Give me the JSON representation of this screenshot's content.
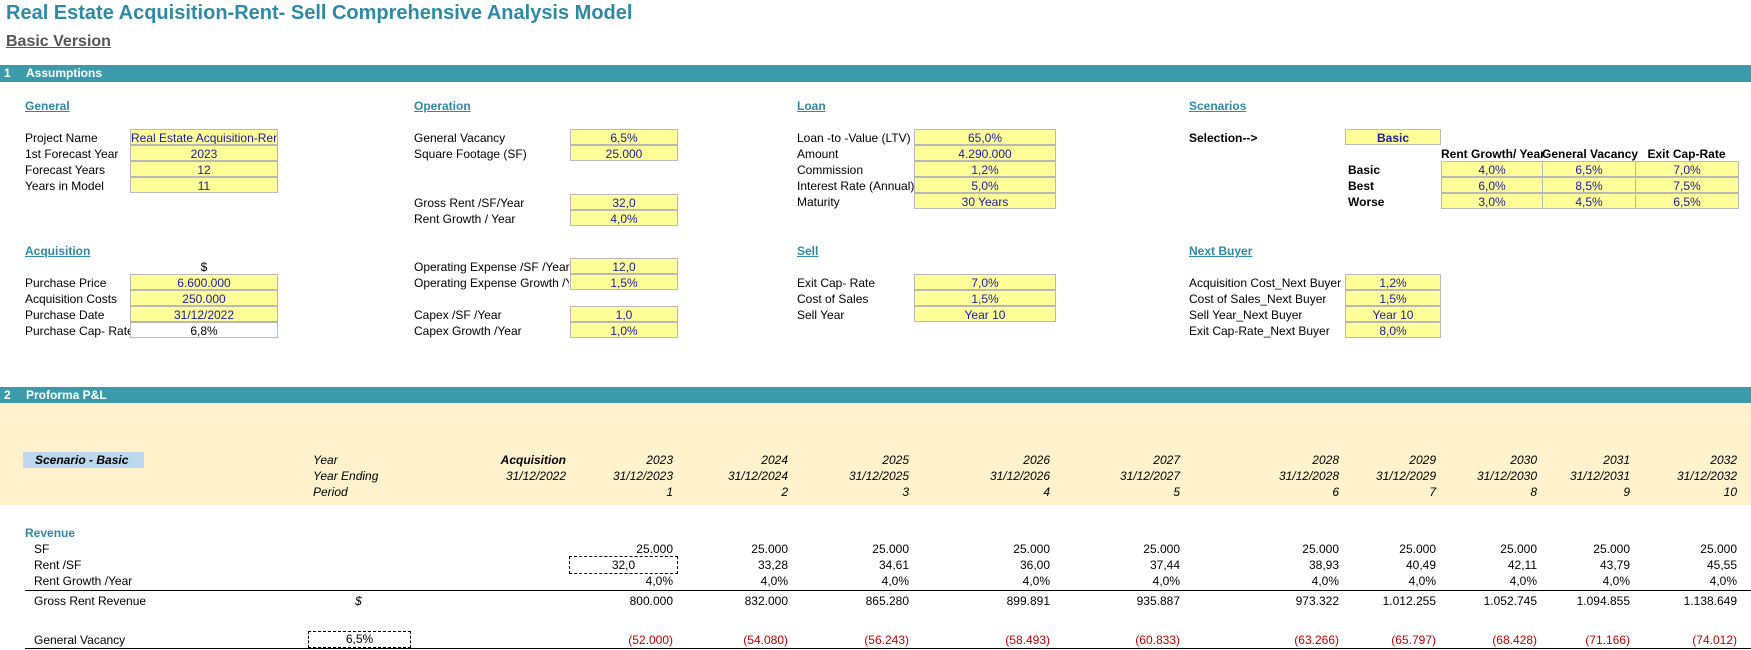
{
  "title": "Real Estate Acquisition-Rent- Sell Comprehensive Analysis Model",
  "subtitle": "Basic Version",
  "colors": {
    "accent": "#3b9bab",
    "input_fill": "#ffff99",
    "header_band": "#fff2cc",
    "negative": "#c00000"
  },
  "section1": {
    "num": "1",
    "label": "Assumptions"
  },
  "general": {
    "heading": "General",
    "project_name_label": "Project Name",
    "project_name": "Real Estate Acquisition-Rent- Sell",
    "first_year_label": "1st Forecast Year",
    "first_year": "2023",
    "forecast_years_label": "Forecast Years",
    "forecast_years": "12",
    "years_model_label": "Years in Model",
    "years_model": "11"
  },
  "operation": {
    "heading": "Operation",
    "vacancy_label": "General Vacancy",
    "vacancy": "6,5%",
    "sf_label": "Square Footage (SF)",
    "sf": "25.000",
    "gross_rent_label": "Gross Rent /SF/Year",
    "gross_rent": "32,0",
    "rent_growth_label": "Rent Growth / Year",
    "rent_growth": "4,0%",
    "opex_label": "Operating Expense /SF /Year",
    "opex": "12,0",
    "opex_growth_label": "Operating Expense Growth  /Ye",
    "opex_growth": "1,5%",
    "capex_label": "Capex /SF /Year",
    "capex": "1,0",
    "capex_growth_label": "Capex Growth  /Year",
    "capex_growth": "1,0%"
  },
  "loan": {
    "heading": "Loan",
    "ltv_label": "Loan -to -Value (LTV)",
    "ltv": "65,0%",
    "amount_label": "Amount",
    "amount": "4.290.000",
    "commission_label": "Commission",
    "commission": "1,2%",
    "interest_label": "Interest Rate (Annual)",
    "interest": "5,0%",
    "maturity_label": "Maturity",
    "maturity": "30 Years"
  },
  "scenarios": {
    "heading": "Scenarios",
    "selection_label": "Selection-->",
    "selection": "Basic",
    "col_headers": [
      "Rent Growth/ Year",
      "General Vacancy",
      "Exit Cap-Rate"
    ],
    "rows": [
      {
        "name": "Basic",
        "values": [
          "4,0%",
          "6,5%",
          "7,0%"
        ]
      },
      {
        "name": "Best",
        "values": [
          "6,0%",
          "8,5%",
          "7,5%"
        ]
      },
      {
        "name": "Worse",
        "values": [
          "3,0%",
          "4,5%",
          "6,5%"
        ]
      }
    ]
  },
  "acquisition": {
    "heading": "Acquisition",
    "currency": "$",
    "price_label": "Purchase Price",
    "price": "6.600.000",
    "costs_label": "Acquisition Costs",
    "costs": "250.000",
    "date_label": "Purchase Date",
    "date": "31/12/2022",
    "cap_label": "Purchase Cap- Rate",
    "cap": "6,8%"
  },
  "sell": {
    "heading": "Sell",
    "exit_cap_label": "Exit Cap- Rate",
    "exit_cap": "7,0%",
    "cost_sales_label": "Cost of Sales",
    "cost_sales": "1,5%",
    "sell_year_label": "Sell Year",
    "sell_year": "Year 10"
  },
  "next_buyer": {
    "heading": "Next Buyer",
    "acq_cost_label": "Acquisition Cost_Next Buyer",
    "acq_cost": "1,2%",
    "cost_sales_label": "Cost of Sales_Next Buyer",
    "cost_sales": "1,5%",
    "sell_year_label": "Sell Year_Next Buyer",
    "sell_year": "Year 10",
    "exit_cap_label": "Exit Cap-Rate_Next Buyer",
    "exit_cap": "8,0%"
  },
  "section2": {
    "num": "2",
    "label": "Proforma P&L"
  },
  "proforma": {
    "scenario_label": "Scenario - Basic",
    "year_label": "Year",
    "year_ending_label": "Year Ending",
    "period_label": "Period",
    "acq_label": "Acquisition",
    "acq_date": "31/12/2022",
    "years": [
      "2023",
      "2024",
      "2025",
      "2026",
      "2027",
      "2028",
      "2029",
      "2030",
      "2031",
      "2032"
    ],
    "year_endings": [
      "31/12/2023",
      "31/12/2024",
      "31/12/2025",
      "31/12/2026",
      "31/12/2027",
      "31/12/2028",
      "31/12/2029",
      "31/12/2030",
      "31/12/2031",
      "31/12/2032"
    ],
    "periods": [
      "1",
      "2",
      "3",
      "4",
      "5",
      "6",
      "7",
      "8",
      "9",
      "10"
    ],
    "revenue_label": "Revenue",
    "sf_label": "SF",
    "sf_values": [
      "25.000",
      "25.000",
      "25.000",
      "25.000",
      "25.000",
      "25.000",
      "25.000",
      "25.000",
      "25.000",
      "25.000"
    ],
    "rent_label": "Rent /SF",
    "rent_base": "32,0",
    "rent_values": [
      "33,28",
      "34,61",
      "36,00",
      "37,44",
      "38,93",
      "40,49",
      "42,11",
      "43,79",
      "45,55"
    ],
    "rent_growth_label": "Rent Growth /Year",
    "rent_growth_values": [
      "4,0%",
      "4,0%",
      "4,0%",
      "4,0%",
      "4,0%",
      "4,0%",
      "4,0%",
      "4,0%",
      "4,0%",
      "4,0%"
    ],
    "gross_label": "Gross Rent Revenue",
    "gross_currency": "$",
    "gross_values": [
      "800.000",
      "832.000",
      "865.280",
      "899.891",
      "935.887",
      "973.322",
      "1.012.255",
      "1.052.745",
      "1.094.855",
      "1.138.649"
    ],
    "vacancy_label": "General Vacancy",
    "vacancy_rate": "6,5%",
    "vacancy_values": [
      "(52.000)",
      "(54.080)",
      "(56.243)",
      "(58.493)",
      "(60.833)",
      "(63.266)",
      "(65.797)",
      "(68.428)",
      "(71.166)",
      "(74.012)"
    ]
  }
}
